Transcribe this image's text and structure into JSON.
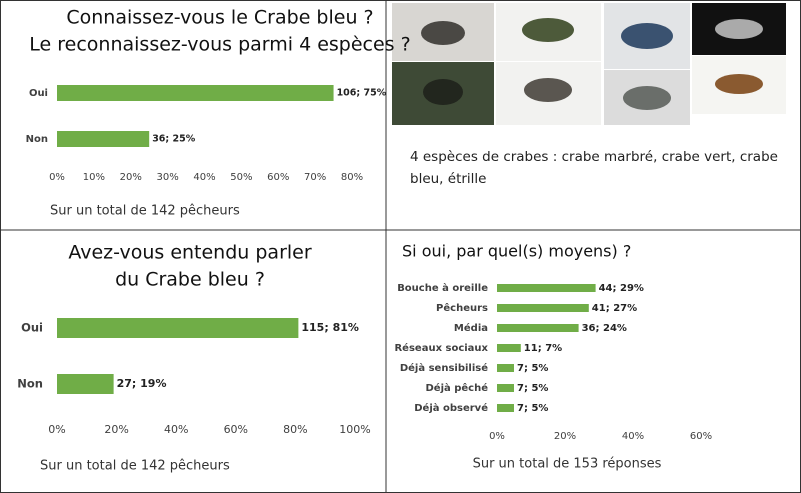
{
  "chart_data": [
    {
      "type": "bar",
      "orientation": "horizontal",
      "title": [
        "Connaissez-vous le Crabe bleu ?",
        "Le reconnaissez-vous parmi 4 espèces ?"
      ],
      "categories": [
        "Oui",
        "Non"
      ],
      "values": [
        75,
        25
      ],
      "value_labels": [
        "106; 75%",
        "36; 25%"
      ],
      "color": "#70ad47",
      "xlim": [
        0,
        80
      ],
      "xticks": [
        {
          "value": 0,
          "label": "0%"
        },
        {
          "value": 10,
          "label": "10%"
        },
        {
          "value": 20,
          "label": "20%"
        },
        {
          "value": 30,
          "label": "30%"
        },
        {
          "value": 40,
          "label": "40%"
        },
        {
          "value": 50,
          "label": "50%"
        },
        {
          "value": 60,
          "label": "60%"
        },
        {
          "value": 70,
          "label": "70%"
        },
        {
          "value": 80,
          "label": "80%"
        }
      ],
      "note": "Sur un total de 142 pêcheurs"
    },
    {
      "type": "bar",
      "orientation": "horizontal",
      "title": [
        "Avez-vous entendu parler",
        "du Crabe bleu ?"
      ],
      "categories": [
        "Oui",
        "Non"
      ],
      "values": [
        81,
        19
      ],
      "value_labels": [
        "115; 81%",
        "27; 19%"
      ],
      "color": "#70ad47",
      "xlim": [
        0,
        100
      ],
      "xticks": [
        {
          "value": 0,
          "label": "0%"
        },
        {
          "value": 20,
          "label": "20%"
        },
        {
          "value": 40,
          "label": "40%"
        },
        {
          "value": 60,
          "label": "60%"
        },
        {
          "value": 80,
          "label": "80%"
        },
        {
          "value": 100,
          "label": "100%"
        }
      ],
      "note": "Sur un total de 142 pêcheurs"
    },
    {
      "type": "bar",
      "orientation": "horizontal",
      "title": [
        "Si oui, par quel(s) moyens) ?"
      ],
      "categories": [
        "Bouche à oreille",
        "Pêcheurs",
        "Média",
        "Réseaux sociaux",
        "Déjà sensibilisé",
        "Déjà pêché",
        "Déjà observé"
      ],
      "values": [
        29,
        27,
        24,
        7,
        5,
        5,
        5
      ],
      "value_labels": [
        "44; 29%",
        "41; 27%",
        "36; 24%",
        "11; 7%",
        "7; 5%",
        "7; 5%",
        "7; 5%"
      ],
      "color": "#70ad47",
      "xlim": [
        0,
        60
      ],
      "xticks": [
        {
          "value": 0,
          "label": "0%"
        },
        {
          "value": 20,
          "label": "20%"
        },
        {
          "value": 40,
          "label": "40%"
        },
        {
          "value": 60,
          "label": "60%"
        }
      ],
      "note": "Sur un total de 153 réponses"
    }
  ],
  "photos": {
    "caption": "4 espèces de crabes : crabe marbré, crabe vert, crabe bleu, étrille"
  }
}
